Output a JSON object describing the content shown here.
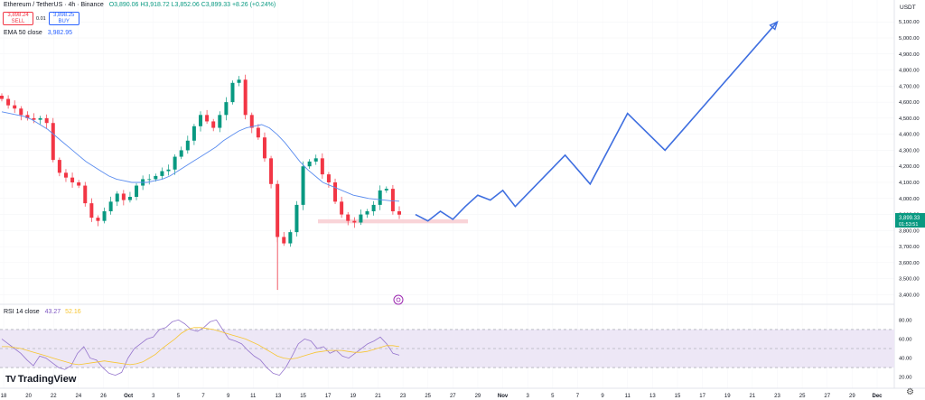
{
  "header": {
    "symbol": "Ethereum / TetherUS · 4h · Binance",
    "ohlc": "O3,890.06 H3,918.72 L3,852.06 C3,899.33 +8.26 (+0.24%)"
  },
  "trade_boxes": {
    "sell_price": "3,898.24",
    "sell_label": "SELL",
    "spread": "0.01",
    "buy_price": "3,898.25",
    "buy_label": "BUY"
  },
  "ema_legend": {
    "label": "EMA 50 close",
    "value": "3,982.95"
  },
  "rsi_legend": {
    "label": "RSI 14 close",
    "rsi_value": "43.27",
    "ma_value": "52.16"
  },
  "currency": "USDT",
  "current_price": {
    "price": "3,899.33",
    "countdown": "01:53:51"
  },
  "brand": {
    "logo_text": "TradingView",
    "logo_mark": "TV"
  },
  "colors": {
    "up": "#089981",
    "down": "#f23645",
    "ema": "#5b8def",
    "projection": "#3f6fe0",
    "rsi": "#9575cd",
    "rsi_ma": "#f7c530",
    "rsi_band": "#ede7f6",
    "zone": "#f8c9ce"
  },
  "chart_data": [
    {
      "type": "candlestick",
      "y_axis_ticks": [
        "5,100.00",
        "5,000.00",
        "4,900.00",
        "4,800.00",
        "4,700.00",
        "4,600.00",
        "4,500.00",
        "4,400.00",
        "4,300.00",
        "4,200.00",
        "4,100.00",
        "4,000.00",
        "3,900.00",
        "3,800.00",
        "3,700.00",
        "3,600.00",
        "3,500.00",
        "3,400.00"
      ],
      "ylim": [
        3380,
        5180
      ],
      "x_axis_ticks": [
        "18",
        "20",
        "22",
        "24",
        "26",
        "Oct",
        "3",
        "5",
        "7",
        "9",
        "11",
        "13",
        "15",
        "17",
        "19",
        "21",
        "23",
        "25",
        "27",
        "29",
        "Nov",
        "3",
        "5",
        "7",
        "9",
        "11",
        "13",
        "15",
        "17",
        "19",
        "21",
        "23",
        "25",
        "27",
        "29",
        "Dec"
      ],
      "candles_close_path": [
        4620,
        4580,
        4560,
        4520,
        4500,
        4490,
        4500,
        4470,
        4240,
        4160,
        4130,
        4100,
        4080,
        3970,
        3880,
        3860,
        3920,
        3980,
        4030,
        3990,
        4010,
        4080,
        4120,
        4120,
        4140,
        4170,
        4180,
        4260,
        4300,
        4360,
        4450,
        4520,
        4480,
        4440,
        4520,
        4600,
        4720,
        4740,
        4520,
        4440,
        4380,
        4250,
        4090,
        3760,
        3720,
        3790,
        3960,
        4200,
        4230,
        4250,
        4150,
        4100,
        3980,
        3900,
        3860,
        3850,
        3900,
        3920,
        3960,
        4050,
        4060,
        3920,
        3899
      ],
      "ema50_path": [
        4540,
        4530,
        4520,
        4510,
        4490,
        4460,
        4430,
        4390,
        4350,
        4310,
        4270,
        4230,
        4200,
        4170,
        4140,
        4120,
        4110,
        4100,
        4100,
        4100,
        4110,
        4120,
        4140,
        4170,
        4200,
        4230,
        4260,
        4290,
        4320,
        4360,
        4390,
        4420,
        4440,
        4450,
        4460,
        4440,
        4400,
        4350,
        4290,
        4230,
        4180,
        4140,
        4100,
        4080,
        4060,
        4040,
        4020,
        4010,
        4000,
        3995,
        3990,
        3985,
        3983
      ],
      "projection_path": [
        {
          "x": "Oct 21",
          "y": 3900
        },
        {
          "x": "Oct 22",
          "y": 3860
        },
        {
          "x": "Oct 23",
          "y": 3920
        },
        {
          "x": "Oct 24",
          "y": 3870
        },
        {
          "x": "Oct 25",
          "y": 3950
        },
        {
          "x": "Oct 26",
          "y": 4020
        },
        {
          "x": "Oct 27",
          "y": 3990
        },
        {
          "x": "Oct 28",
          "y": 4050
        },
        {
          "x": "Oct 29",
          "y": 3950
        },
        {
          "x": "Nov 2",
          "y": 4270
        },
        {
          "x": "Nov 4",
          "y": 4090
        },
        {
          "x": "Nov 7",
          "y": 4530
        },
        {
          "x": "Nov 10",
          "y": 4300
        },
        {
          "x": "Nov 19",
          "y": 5100
        }
      ],
      "support_zone": [
        3845,
        3870
      ]
    },
    {
      "type": "line",
      "title": "RSI 14 close",
      "y_axis_ticks": [
        "80.00",
        "60.00",
        "40.00",
        "20.00"
      ],
      "ylim": [
        14,
        86
      ],
      "band": [
        30,
        70
      ],
      "rsi_path": [
        60,
        55,
        50,
        45,
        38,
        32,
        42,
        40,
        35,
        30,
        28,
        32,
        45,
        52,
        40,
        38,
        30,
        24,
        22,
        25,
        40,
        50,
        55,
        60,
        62,
        70,
        72,
        78,
        80,
        76,
        70,
        68,
        72,
        78,
        80,
        70,
        60,
        58,
        55,
        48,
        42,
        38,
        30,
        24,
        22,
        30,
        42,
        55,
        60,
        58,
        50,
        52,
        45,
        48,
        42,
        40,
        45,
        50,
        55,
        58,
        62,
        55,
        45,
        43
      ],
      "rsi_ma_path": [
        52,
        52,
        51,
        50,
        48,
        46,
        44,
        42,
        40,
        38,
        36,
        34,
        33,
        34,
        35,
        36,
        37,
        36,
        35,
        34,
        33,
        34,
        36,
        40,
        44,
        50,
        55,
        60,
        66,
        70,
        72,
        72,
        71,
        70,
        68,
        66,
        64,
        62,
        60,
        57,
        54,
        50,
        46,
        42,
        40,
        39,
        40,
        42,
        44,
        46,
        47,
        48,
        48,
        48,
        47,
        46,
        46,
        47,
        49,
        51,
        53,
        53,
        52
      ]
    }
  ]
}
